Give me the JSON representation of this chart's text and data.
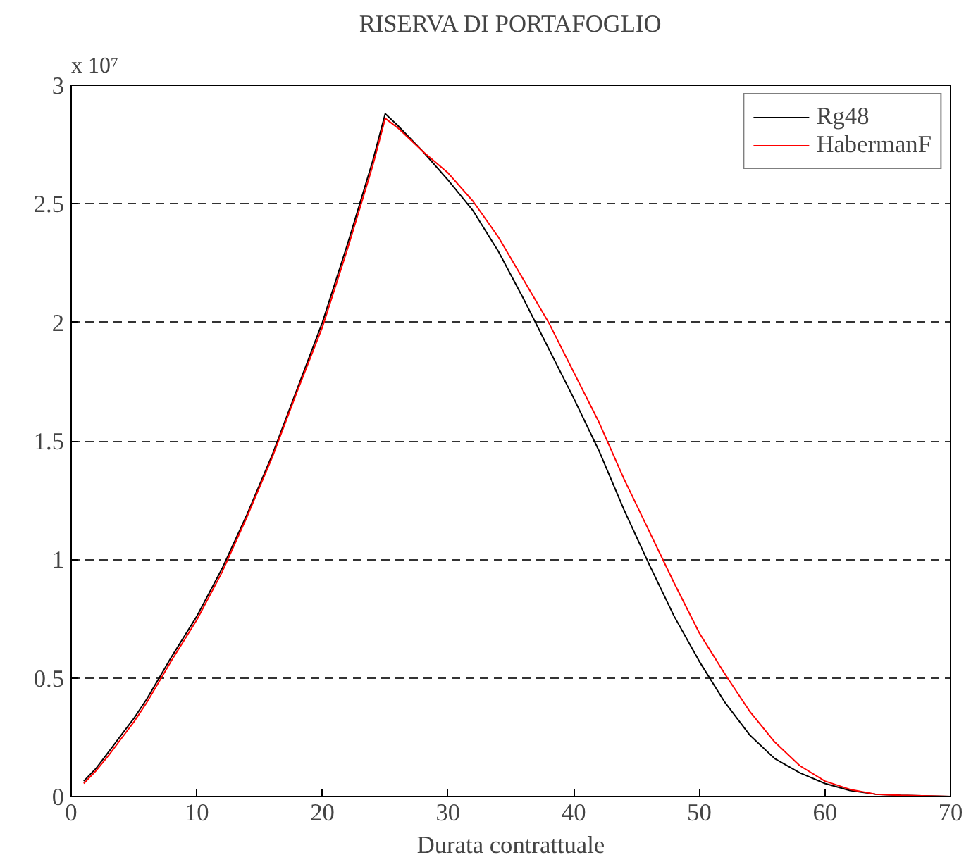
{
  "chart_data": {
    "type": "line",
    "title": "RISERVA DI PORTAFOGLIO",
    "xlabel": "Durata contrattuale",
    "annotations": [
      "x 10⁷"
    ],
    "xlim": [
      0,
      70
    ],
    "xticks": [
      0,
      10,
      20,
      30,
      40,
      50,
      60,
      70
    ],
    "ylim": [
      0,
      3
    ],
    "yticks": [
      0,
      0.5,
      1,
      1.5,
      2,
      2.5,
      3
    ],
    "grid": "y",
    "legend": "top right",
    "line_style": "solid",
    "marker": "none",
    "series": [
      {
        "name": "Rg48",
        "color": "#000000",
        "x": [
          1,
          2,
          3,
          4,
          5,
          6,
          7,
          8,
          10,
          12,
          14,
          16,
          18,
          20,
          22,
          24,
          25,
          26,
          28,
          30,
          32,
          34,
          36,
          38,
          40,
          42,
          44,
          46,
          48,
          50,
          52,
          54,
          56,
          58,
          60,
          62,
          64,
          66,
          70
        ],
        "values": [
          0.065,
          0.12,
          0.19,
          0.26,
          0.33,
          0.41,
          0.5,
          0.59,
          0.76,
          0.96,
          1.19,
          1.44,
          1.72,
          2.0,
          2.33,
          2.68,
          2.88,
          2.83,
          2.72,
          2.6,
          2.47,
          2.3,
          2.1,
          1.89,
          1.68,
          1.46,
          1.21,
          0.98,
          0.76,
          0.57,
          0.4,
          0.26,
          0.16,
          0.1,
          0.055,
          0.025,
          0.01,
          0.005,
          0.0
        ]
      },
      {
        "name": "HabermanF",
        "color": "#ff0000",
        "x": [
          1,
          2,
          3,
          4,
          5,
          6,
          7,
          8,
          10,
          12,
          14,
          16,
          18,
          20,
          22,
          24,
          25,
          26,
          28,
          30,
          32,
          34,
          36,
          38,
          40,
          42,
          44,
          46,
          48,
          50,
          52,
          54,
          56,
          58,
          60,
          62,
          64,
          66,
          70
        ],
        "values": [
          0.055,
          0.11,
          0.175,
          0.245,
          0.315,
          0.395,
          0.485,
          0.575,
          0.745,
          0.945,
          1.18,
          1.43,
          1.71,
          1.98,
          2.31,
          2.66,
          2.86,
          2.82,
          2.72,
          2.63,
          2.51,
          2.36,
          2.18,
          2.0,
          1.79,
          1.58,
          1.34,
          1.12,
          0.9,
          0.69,
          0.52,
          0.36,
          0.23,
          0.13,
          0.065,
          0.03,
          0.01,
          0.005,
          0.0
        ]
      }
    ]
  }
}
